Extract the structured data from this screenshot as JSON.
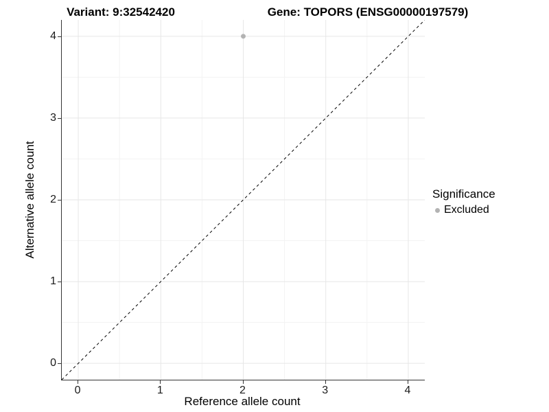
{
  "chart_data": {
    "type": "scatter",
    "title_left": "Variant: 9:32542420",
    "title_right": "Gene: TOPORS (ENSG00000197579)",
    "xlabel": "Reference allele count",
    "ylabel": "Alternative allele count",
    "xlim": [
      -0.2,
      4.2
    ],
    "ylim": [
      -0.2,
      4.2
    ],
    "x_ticks": [
      0,
      1,
      2,
      3,
      4
    ],
    "y_ticks": [
      0,
      1,
      2,
      3,
      4
    ],
    "x_minor_ticks": [
      0.5,
      1.5,
      2.5,
      3.5
    ],
    "y_minor_ticks": [
      0.5,
      1.5,
      2.5,
      3.5
    ],
    "grid": true,
    "points": [
      {
        "x": 2,
        "y": 4,
        "series": "Excluded"
      }
    ],
    "reference_line": {
      "slope": 1,
      "intercept": 0,
      "style": "dashed",
      "color": "#000000"
    },
    "legend": {
      "title": "Significance",
      "position": "right",
      "items": [
        {
          "label": "Excluded",
          "color": "#b3b3b3"
        }
      ]
    },
    "colors": {
      "grid_major": "#e6e6e6",
      "grid_minor": "#f3f3f3",
      "axis_line": "#333333",
      "point_radius_px": 3.5
    }
  }
}
